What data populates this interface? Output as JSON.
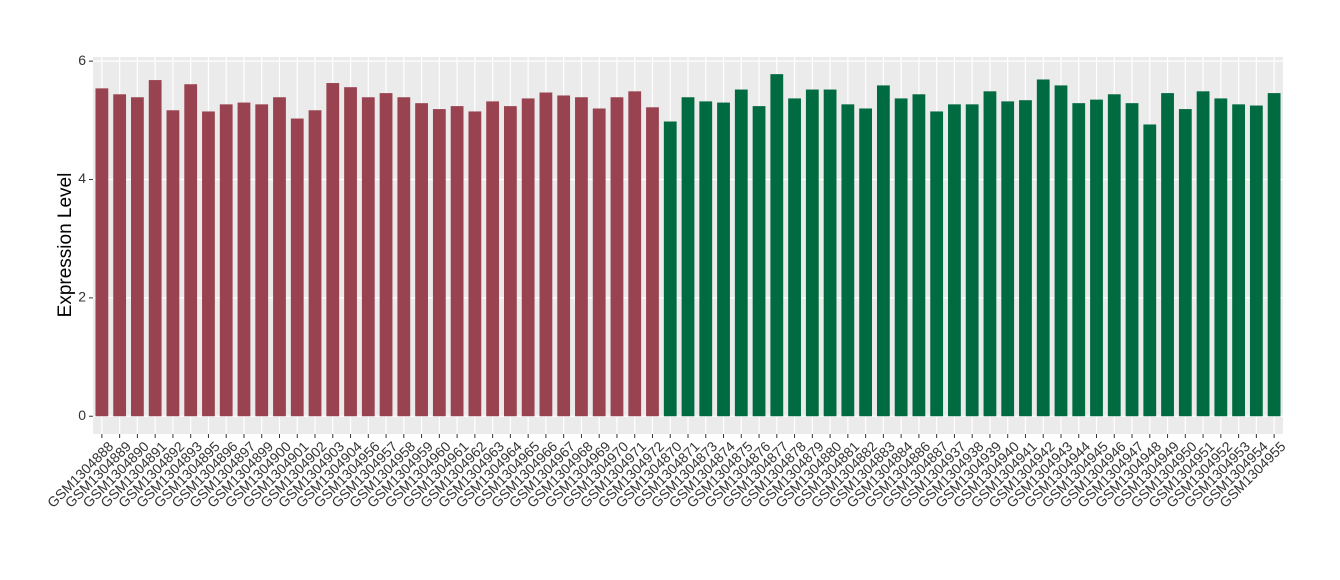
{
  "chart_data": {
    "type": "bar",
    "y_label": "Expression Level",
    "categories": [
      "GSM1304888",
      "GSM1304889",
      "GSM1304890",
      "GSM1304891",
      "GSM1304892",
      "GSM1304893",
      "GSM1304895",
      "GSM1304896",
      "GSM1304897",
      "GSM1304899",
      "GSM1304900",
      "GSM1304901",
      "GSM1304902",
      "GSM1304903",
      "GSM1304904",
      "GSM1304956",
      "GSM1304957",
      "GSM1304958",
      "GSM1304959",
      "GSM1304960",
      "GSM1304961",
      "GSM1304962",
      "GSM1304963",
      "GSM1304964",
      "GSM1304965",
      "GSM1304966",
      "GSM1304967",
      "GSM1304968",
      "GSM1304969",
      "GSM1304970",
      "GSM1304971",
      "GSM1304972",
      "GSM1304870",
      "GSM1304871",
      "GSM1304873",
      "GSM1304874",
      "GSM1304875",
      "GSM1304876",
      "GSM1304877",
      "GSM1304878",
      "GSM1304879",
      "GSM1304880",
      "GSM1304881",
      "GSM1304882",
      "GSM1304883",
      "GSM1304884",
      "GSM1304886",
      "GSM1304887",
      "GSM1304937",
      "GSM1304938",
      "GSM1304939",
      "GSM1304940",
      "GSM1304941",
      "GSM1304942",
      "GSM1304943",
      "GSM1304944",
      "GSM1304945",
      "GSM1304946",
      "GSM1304947",
      "GSM1304948",
      "GSM1304949",
      "GSM1304950",
      "GSM1304951",
      "GSM1304952",
      "GSM1304953",
      "GSM1304954",
      "GSM1304955"
    ],
    "values": [
      5.54,
      5.44,
      5.39,
      5.68,
      5.17,
      5.61,
      5.15,
      5.27,
      5.3,
      5.27,
      5.39,
      5.03,
      5.17,
      5.63,
      5.56,
      5.39,
      5.46,
      5.39,
      5.29,
      5.19,
      5.24,
      5.15,
      5.32,
      5.24,
      5.37,
      5.47,
      5.42,
      5.39,
      5.2,
      5.39,
      5.49,
      5.22,
      4.98,
      5.39,
      5.32,
      5.3,
      5.52,
      5.24,
      5.78,
      5.37,
      5.52,
      5.52,
      5.27,
      5.2,
      5.59,
      5.37,
      5.44,
      5.15,
      5.27,
      5.27,
      5.49,
      5.32,
      5.34,
      5.69,
      5.59,
      5.29,
      5.35,
      5.44,
      5.29,
      4.93,
      5.46,
      5.19,
      5.49,
      5.37,
      5.27,
      5.25,
      5.46
    ],
    "colors": [
      "#9a4350",
      "#9a4350",
      "#9a4350",
      "#9a4350",
      "#9a4350",
      "#9a4350",
      "#9a4350",
      "#9a4350",
      "#9a4350",
      "#9a4350",
      "#9a4350",
      "#9a4350",
      "#9a4350",
      "#9a4350",
      "#9a4350",
      "#9a4350",
      "#9a4350",
      "#9a4350",
      "#9a4350",
      "#9a4350",
      "#9a4350",
      "#9a4350",
      "#9a4350",
      "#9a4350",
      "#9a4350",
      "#9a4350",
      "#9a4350",
      "#9a4350",
      "#9a4350",
      "#9a4350",
      "#9a4350",
      "#9a4350",
      "#006a40",
      "#006a40",
      "#006a40",
      "#006a40",
      "#006a40",
      "#006a40",
      "#006a40",
      "#006a40",
      "#006a40",
      "#006a40",
      "#006a40",
      "#006a40",
      "#006a40",
      "#006a40",
      "#006a40",
      "#006a40",
      "#006a40",
      "#006a40",
      "#006a40",
      "#006a40",
      "#006a40",
      "#006a40",
      "#006a40",
      "#006a40",
      "#006a40",
      "#006a40",
      "#006a40",
      "#006a40",
      "#006a40",
      "#006a40",
      "#006a40",
      "#006a40",
      "#006a40",
      "#006a40",
      "#006a40"
    ],
    "ylim": [
      -0.3,
      6.07
    ],
    "yticks": [
      0,
      2,
      4,
      6
    ],
    "grid": true
  }
}
